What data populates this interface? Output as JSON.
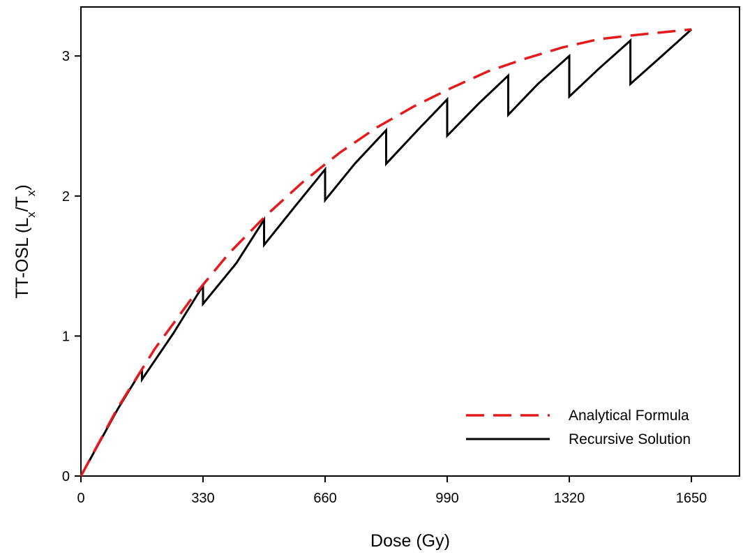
{
  "chart_data": {
    "type": "line",
    "xlabel": "Dose (Gy)",
    "ylabel": {
      "base": "TT-OSL (L",
      "sub1": "x",
      "mid": "/T",
      "sub2": "x",
      "end": ")"
    },
    "xlim": [
      0,
      1780
    ],
    "ylim": [
      0,
      3.35
    ],
    "x_ticks": [
      0,
      330,
      660,
      990,
      1320,
      1650
    ],
    "y_ticks": [
      0,
      1,
      2,
      3
    ],
    "grid": false,
    "legend_position": "bottom-right",
    "series": [
      {
        "name": "Analytical Formula",
        "color": "#e41a1c",
        "style": "dashed",
        "points": [
          [
            0,
            0
          ],
          [
            100,
            0.49
          ],
          [
            200,
            0.91
          ],
          [
            300,
            1.27
          ],
          [
            400,
            1.59
          ],
          [
            500,
            1.86
          ],
          [
            600,
            2.1
          ],
          [
            700,
            2.31
          ],
          [
            800,
            2.49
          ],
          [
            900,
            2.64
          ],
          [
            1000,
            2.77
          ],
          [
            1100,
            2.89
          ],
          [
            1200,
            2.98
          ],
          [
            1300,
            3.06
          ],
          [
            1400,
            3.12
          ],
          [
            1500,
            3.15
          ],
          [
            1650,
            3.19
          ]
        ]
      },
      {
        "name": "Recursive Solution",
        "color": "#000000",
        "style": "solid",
        "points": [
          [
            0,
            0
          ],
          [
            100,
            0.48
          ],
          [
            165,
            0.76
          ],
          [
            165,
            0.69
          ],
          [
            250,
            1.02
          ],
          [
            330,
            1.36
          ],
          [
            330,
            1.23
          ],
          [
            420,
            1.52
          ],
          [
            495,
            1.83
          ],
          [
            495,
            1.65
          ],
          [
            580,
            1.93
          ],
          [
            660,
            2.19
          ],
          [
            660,
            1.97
          ],
          [
            740,
            2.23
          ],
          [
            825,
            2.47
          ],
          [
            825,
            2.23
          ],
          [
            910,
            2.47
          ],
          [
            990,
            2.69
          ],
          [
            990,
            2.43
          ],
          [
            1075,
            2.66
          ],
          [
            1155,
            2.86
          ],
          [
            1155,
            2.58
          ],
          [
            1235,
            2.8
          ],
          [
            1320,
            3.0
          ],
          [
            1320,
            2.71
          ],
          [
            1400,
            2.91
          ],
          [
            1485,
            3.11
          ],
          [
            1485,
            2.8
          ],
          [
            1570,
            3.0
          ],
          [
            1650,
            3.19
          ]
        ]
      }
    ]
  }
}
